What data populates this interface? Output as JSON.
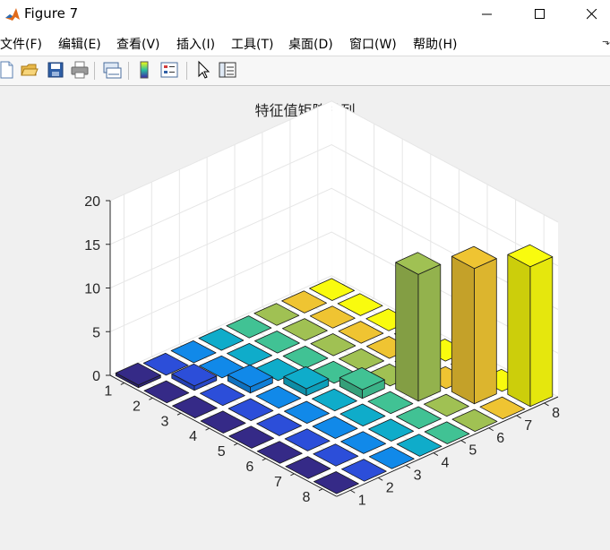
{
  "window": {
    "title": "Figure 7",
    "minimize_icon": "minimize-icon",
    "maximize_icon": "maximize-icon",
    "close_icon": "close-icon"
  },
  "menu": {
    "items": [
      "文件(F)",
      "编辑(E)",
      "查看(V)",
      "插入(I)",
      "工具(T)",
      "桌面(D)",
      "窗口(W)",
      "帮助(H)"
    ],
    "overflow_icon": "chevron-icon"
  },
  "toolbar": {
    "icons": [
      "new-figure-icon",
      "open-file-icon",
      "save-icon",
      "print-icon",
      "link-plot-icon",
      "colorbar-icon",
      "legend-icon",
      "pointer-icon",
      "property-inspector-icon"
    ]
  },
  "colors": {
    "figure_bg": "#f0f0f0",
    "axes_bg": "#ffffff",
    "grid": "#e6e6e6",
    "axis_line": "#262626"
  },
  "chart_data": {
    "type": "bar3",
    "title": "特征值矩阵排列",
    "colormap": "parula",
    "x_ticks": [
      "1",
      "2",
      "3",
      "4",
      "5",
      "6",
      "7",
      "8"
    ],
    "y_ticks": [
      "1",
      "2",
      "3",
      "4",
      "5",
      "6",
      "7",
      "8"
    ],
    "z_ticks": [
      "0",
      "5",
      "10",
      "15",
      "20"
    ],
    "zlim": [
      0,
      20
    ],
    "grid": true,
    "matrix": [
      [
        0.3,
        0,
        0,
        0,
        0,
        0,
        0,
        0
      ],
      [
        0,
        0.5,
        0,
        0,
        0,
        0,
        0,
        0
      ],
      [
        0,
        0,
        0.7,
        0,
        0,
        0,
        0,
        0
      ],
      [
        0,
        0,
        0,
        0.8,
        0,
        0,
        0,
        0
      ],
      [
        0,
        0,
        0,
        0,
        1.0,
        0,
        0,
        0
      ],
      [
        0,
        0,
        0,
        0,
        0,
        14.5,
        0,
        0
      ],
      [
        0,
        0,
        0,
        0,
        0,
        0,
        15.5,
        0
      ],
      [
        0,
        0,
        0,
        0,
        0,
        0,
        0,
        16.0
      ]
    ]
  }
}
